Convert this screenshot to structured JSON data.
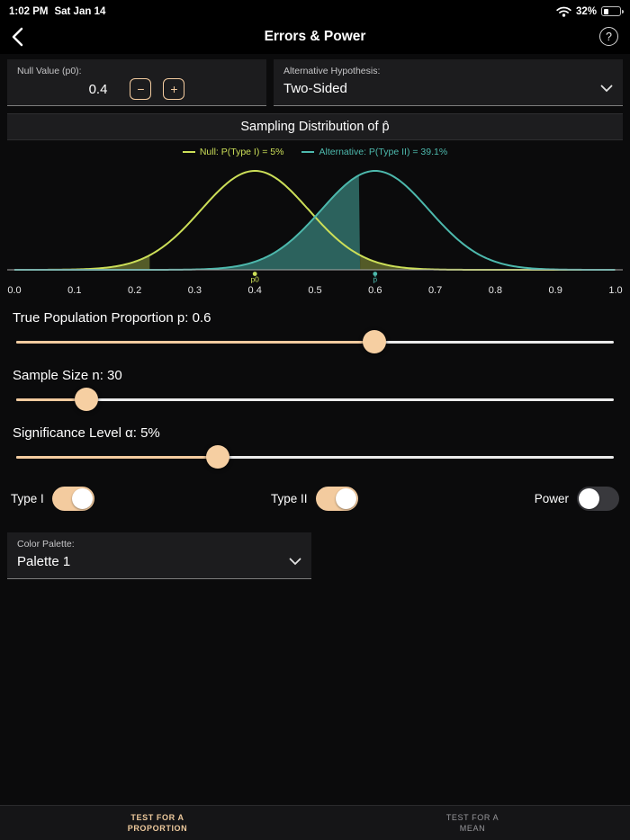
{
  "status_bar": {
    "time": "1:02 PM",
    "date": "Sat Jan 14",
    "battery_percent": "32%",
    "battery_level": 32
  },
  "nav": {
    "title": "Errors & Power",
    "help_glyph": "?"
  },
  "controls": {
    "null_value": {
      "label": "Null Value (p0):",
      "value": "0.4",
      "decrement_glyph": "−",
      "increment_glyph": "+"
    },
    "alternative_hypothesis": {
      "label": "Alternative Hypothesis:",
      "value": "Two-Sided"
    }
  },
  "chart": {
    "title": "Sampling Distribution of p̂",
    "legend": [
      {
        "label": "Null: P(Type I) = 5%",
        "color": "#ccdf58"
      },
      {
        "label": "Alternative: P(Type II) = 39.1%",
        "color": "#4db9ad"
      }
    ]
  },
  "chart_data": {
    "type": "area",
    "title": "Sampling Distribution of p̂",
    "x_axis": {
      "min": 0,
      "max": 1,
      "tick_labels": [
        "0.0",
        "0.1",
        "0.2",
        "0.3",
        "0.4",
        "0.5",
        "0.6",
        "0.7",
        "0.8",
        "0.9",
        "1.0"
      ]
    },
    "series": [
      {
        "name": "Null",
        "distribution": "normal",
        "mean": 0.4,
        "sd": 0.0894,
        "color": "#ccdf58",
        "fill_opacity": 0.38,
        "shaded_regions": [
          [
            0,
            0.225
          ],
          [
            0.575,
            1
          ]
        ],
        "annotation": "P(Type I) = 5%"
      },
      {
        "name": "Alternative",
        "distribution": "normal",
        "mean": 0.6,
        "sd": 0.0894,
        "color": "#4db9ad",
        "fill_opacity": 0.5,
        "shaded_regions": [
          [
            0,
            0.575
          ]
        ],
        "annotation": "P(Type II) = 39.1%"
      }
    ],
    "critical_values": [
      0.225,
      0.575
    ],
    "markers": [
      {
        "label": "p0",
        "x": 0.4,
        "color": "#ccdf58"
      },
      {
        "label": "p̂",
        "x": 0.6,
        "color": "#4db9ad"
      }
    ],
    "legend_position": "top"
  },
  "sliders": [
    {
      "id": "proportion",
      "label": "True Population Proportion p: 0.6",
      "fraction": 0.6
    },
    {
      "id": "sample-size",
      "label": "Sample Size n: 30",
      "fraction": 0.118
    },
    {
      "id": "significance",
      "label": "Significance Level α: 5%",
      "fraction": 0.338
    }
  ],
  "toggles": [
    {
      "label": "Type I",
      "on": true
    },
    {
      "label": "Type II",
      "on": true
    },
    {
      "label": "Power",
      "on": false
    }
  ],
  "palette": {
    "label": "Color Palette:",
    "value": "Palette 1"
  },
  "tab_bar": [
    {
      "line1": "TEST FOR A",
      "line2": "PROPORTION",
      "active": true
    },
    {
      "line1": "TEST FOR A",
      "line2": "MEAN",
      "active": false
    }
  ],
  "colors": {
    "accent": "#f3cb9f",
    "null_curve": "#ccdf58",
    "alt_curve": "#4db9ad"
  }
}
